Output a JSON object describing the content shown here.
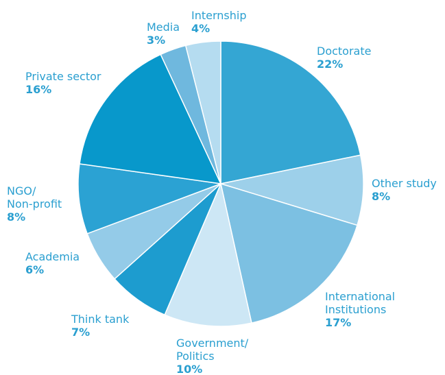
{
  "chart_data": {
    "type": "pie",
    "title": "",
    "start_angle_deg": 0,
    "direction": "clockwise",
    "slices": [
      {
        "label": [
          "Doctorate"
        ],
        "value": 22,
        "value_label": "22%",
        "color": "#34a6d3"
      },
      {
        "label": [
          "Other study"
        ],
        "value": 8,
        "value_label": "8%",
        "color": "#9dd0ea"
      },
      {
        "label": [
          "International",
          "Institutions"
        ],
        "value": 17,
        "value_label": "17%",
        "color": "#7cc0e2"
      },
      {
        "label": [
          "Government/",
          "Politics"
        ],
        "value": 10,
        "value_label": "10%",
        "color": "#cde7f5"
      },
      {
        "label": [
          "Think tank"
        ],
        "value": 7,
        "value_label": "7%",
        "color": "#1d9ccf"
      },
      {
        "label": [
          "Academia"
        ],
        "value": 6,
        "value_label": "6%",
        "color": "#94cbe8"
      },
      {
        "label": [
          "NGO/",
          "Non-profit"
        ],
        "value": 8,
        "value_label": "8%",
        "color": "#2ba2d3"
      },
      {
        "label": [
          "Private sector"
        ],
        "value": 16,
        "value_label": "16%",
        "color": "#0898cb"
      },
      {
        "label": [
          "Media"
        ],
        "value": 3,
        "value_label": "3%",
        "color": "#6fb8de"
      },
      {
        "label": [
          "Internship"
        ],
        "value": 4,
        "value_label": "4%",
        "color": "#b5dcf0"
      }
    ]
  }
}
